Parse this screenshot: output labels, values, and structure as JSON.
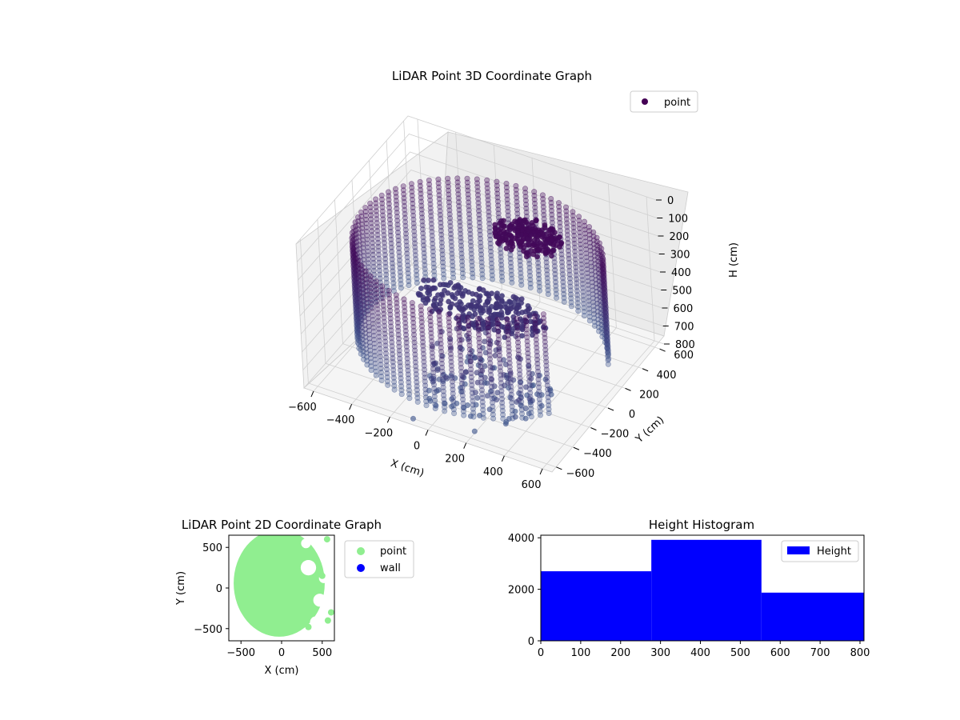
{
  "colors": {
    "point_3d_dark": "#440154",
    "point_3d_light": "#3b528b",
    "point_2d": "#90ee90",
    "wall": "#0000ff",
    "hist": "#0000ff",
    "pane": "#f2f2f2",
    "grid": "#d0d0d0"
  },
  "chart_data": [
    {
      "type": "scatter",
      "projection": "3d",
      "title": "LiDAR Point 3D Coordinate Graph",
      "xlabel": "X (cm)",
      "ylabel": "Y (cm)",
      "zlabel": "H (cm)",
      "xlim": [
        -650,
        650
      ],
      "ylim": [
        -650,
        650
      ],
      "zlim": [
        800,
        0
      ],
      "z_inverted": true,
      "xticks": [
        -600,
        -400,
        -200,
        0,
        200,
        400,
        600
      ],
      "yticks": [
        -600,
        -400,
        -200,
        0,
        200,
        400,
        600
      ],
      "zticks": [
        0,
        100,
        200,
        300,
        400,
        500,
        600,
        700,
        800
      ],
      "xtick_labels": [
        "−600",
        "−400",
        "−200",
        "0",
        "200",
        "400",
        "600"
      ],
      "ytick_labels": [
        "−600",
        "−400",
        "−200",
        "0",
        "200",
        "400",
        "600"
      ],
      "ztick_labels": [
        "0",
        "100",
        "200",
        "300",
        "400",
        "500",
        "600",
        "700",
        "800"
      ],
      "legend": [
        "point"
      ],
      "legend_position": "top-right",
      "grid": true,
      "series": [
        {
          "name": "point",
          "description_values": "cylindrical wall of points, radius ~600 cm, heights 150-700 cm, open toward +Y, plus a dense ceiling-like cluster near H~150 and a flat cluster near H~500",
          "wall_radius": 600,
          "wall_height_range": [
            150,
            700
          ],
          "wall_angle_range_deg": [
            20,
            330
          ],
          "clusters": [
            {
              "x": 150,
              "y": 250,
              "h": 170
            },
            {
              "x": 0,
              "y": 0,
              "h": 480
            }
          ],
          "floor_points": [
            {
              "x": 100,
              "y": -450,
              "h": 750
            },
            {
              "x": 300,
              "y": -300,
              "h": 780
            },
            {
              "x": 400,
              "y": -100,
              "h": 760
            },
            {
              "x": 200,
              "y": -550,
              "h": 790
            },
            {
              "x": -100,
              "y": -600,
              "h": 800
            }
          ]
        }
      ]
    },
    {
      "type": "scatter",
      "title": "LiDAR Point 2D Coordinate Graph",
      "xlabel": "X (cm)",
      "ylabel": "Y (cm)",
      "xlim": [
        -650,
        650
      ],
      "ylim": [
        -650,
        650
      ],
      "xticks": [
        -500,
        0,
        500
      ],
      "yticks": [
        -500,
        0,
        500
      ],
      "xtick_labels": [
        "−500",
        "0",
        "500"
      ],
      "ytick_labels": [
        "−500",
        "0",
        "500"
      ],
      "legend": [
        "point",
        "wall"
      ],
      "legend_position": "right",
      "series": [
        {
          "name": "point",
          "shape": "filled disc of radius ~600 cm with notches on the right side (x>250)",
          "radius": 600
        },
        {
          "name": "wall",
          "values": []
        }
      ]
    },
    {
      "type": "bar",
      "subtype": "histogram",
      "title": "Height Histogram",
      "xlim": [
        0,
        810
      ],
      "ylim": [
        0,
        4100
      ],
      "xticks": [
        0,
        100,
        200,
        300,
        400,
        500,
        600,
        700,
        800
      ],
      "yticks": [
        0,
        2000,
        4000
      ],
      "bins": [
        {
          "start": 0,
          "end": 277,
          "count": 2700
        },
        {
          "start": 277,
          "end": 553,
          "count": 3920
        },
        {
          "start": 553,
          "end": 810,
          "count": 1870
        }
      ],
      "legend": [
        "Height"
      ],
      "legend_position": "top-right"
    }
  ]
}
